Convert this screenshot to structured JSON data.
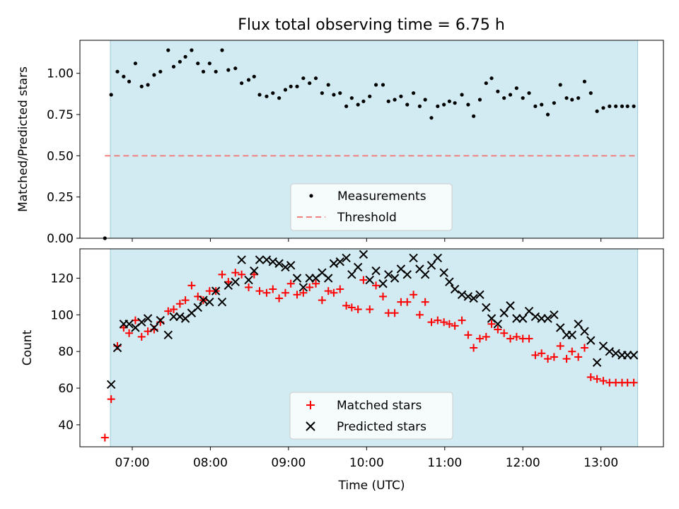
{
  "figure": {
    "title": "Flux total observing time = 6.75 h"
  },
  "chart_data": [
    {
      "type": "scatter",
      "title": "Flux total observing time = 6.75 h",
      "ylabel": "Matched/Predicted stars",
      "xlabel": "",
      "xlim": [
        6.33,
        13.8
      ],
      "ylim": [
        0.0,
        1.2
      ],
      "yticks": [
        0.0,
        0.25,
        0.5,
        0.75,
        1.0
      ],
      "ytick_labels": [
        "0.00",
        "0.25",
        "0.50",
        "0.75",
        "1.00"
      ],
      "grid": false,
      "legend_position": "lower center",
      "observing_window": {
        "start": 6.72,
        "end": 13.47,
        "color": "#add8e6"
      },
      "series": [
        {
          "name": "Measurements",
          "color": "#000000",
          "marker": "dot",
          "x": [
            6.65,
            6.73,
            6.81,
            6.89,
            6.96,
            7.04,
            7.12,
            7.2,
            7.28,
            7.36,
            7.46,
            7.53,
            7.61,
            7.68,
            7.76,
            7.84,
            7.91,
            7.99,
            8.07,
            8.15,
            8.23,
            8.32,
            8.4,
            8.49,
            8.56,
            8.63,
            8.72,
            8.8,
            8.88,
            8.96,
            9.03,
            9.11,
            9.19,
            9.27,
            9.35,
            9.43,
            9.51,
            9.58,
            9.66,
            9.74,
            9.81,
            9.89,
            9.96,
            10.04,
            10.12,
            10.21,
            10.28,
            10.36,
            10.44,
            10.52,
            10.6,
            10.68,
            10.75,
            10.83,
            10.91,
            10.99,
            11.06,
            11.13,
            11.22,
            11.3,
            11.37,
            11.45,
            11.53,
            11.6,
            11.68,
            11.76,
            11.84,
            11.92,
            12.0,
            12.08,
            12.16,
            12.24,
            12.32,
            12.4,
            12.48,
            12.56,
            12.63,
            12.71,
            12.79,
            12.87,
            12.95,
            13.03,
            13.11,
            13.19,
            13.27,
            13.34,
            13.42
          ],
          "y": [
            0.0,
            0.87,
            1.01,
            0.98,
            0.95,
            1.06,
            0.92,
            0.93,
            0.99,
            1.01,
            1.14,
            1.04,
            1.07,
            1.1,
            1.14,
            1.06,
            1.01,
            1.06,
            1.01,
            1.14,
            1.02,
            1.03,
            0.94,
            0.96,
            0.98,
            0.87,
            0.86,
            0.88,
            0.85,
            0.9,
            0.92,
            0.92,
            0.97,
            0.94,
            0.97,
            0.88,
            0.93,
            0.87,
            0.88,
            0.8,
            0.85,
            0.81,
            0.83,
            0.86,
            0.93,
            0.93,
            0.83,
            0.84,
            0.86,
            0.81,
            0.88,
            0.8,
            0.84,
            0.73,
            0.8,
            0.81,
            0.83,
            0.82,
            0.87,
            0.81,
            0.74,
            0.84,
            0.94,
            0.97,
            0.89,
            0.85,
            0.87,
            0.91,
            0.85,
            0.88,
            0.8,
            0.81,
            0.75,
            0.82,
            0.93,
            0.85,
            0.84,
            0.85,
            0.95,
            0.88,
            0.77,
            0.79,
            0.8,
            0.8,
            0.8,
            0.8,
            0.8
          ]
        },
        {
          "name": "Threshold",
          "color": "#f08080",
          "line_style": "dashed",
          "x": [
            6.65,
            13.47
          ],
          "y": [
            0.5,
            0.5
          ]
        }
      ]
    },
    {
      "type": "scatter",
      "title": "",
      "xlabel": "Time (UTC)",
      "ylabel": "Count",
      "xlim": [
        6.33,
        13.8
      ],
      "ylim": [
        28,
        136
      ],
      "xticks": [
        7,
        8,
        9,
        10,
        11,
        12,
        13
      ],
      "xtick_labels": [
        "07:00",
        "08:00",
        "09:00",
        "10:00",
        "11:00",
        "12:00",
        "13:00"
      ],
      "yticks": [
        40,
        60,
        80,
        100,
        120
      ],
      "ytick_labels": [
        "40",
        "60",
        "80",
        "100",
        "120"
      ],
      "grid": false,
      "legend_position": "lower center",
      "observing_window": {
        "start": 6.72,
        "end": 13.47,
        "color": "#add8e6"
      },
      "series": [
        {
          "name": "Matched stars",
          "color": "#ff0000",
          "marker": "plus",
          "x": [
            6.65,
            6.73,
            6.81,
            6.89,
            6.96,
            7.04,
            7.12,
            7.2,
            7.28,
            7.36,
            7.46,
            7.53,
            7.61,
            7.68,
            7.76,
            7.84,
            7.91,
            7.99,
            8.07,
            8.15,
            8.23,
            8.32,
            8.4,
            8.49,
            8.56,
            8.63,
            8.72,
            8.8,
            8.88,
            8.96,
            9.03,
            9.11,
            9.19,
            9.27,
            9.35,
            9.43,
            9.51,
            9.58,
            9.66,
            9.74,
            9.81,
            9.89,
            9.96,
            10.04,
            10.12,
            10.21,
            10.28,
            10.36,
            10.44,
            10.52,
            10.6,
            10.68,
            10.75,
            10.83,
            10.91,
            10.99,
            11.06,
            11.13,
            11.22,
            11.3,
            11.37,
            11.45,
            11.53,
            11.6,
            11.68,
            11.76,
            11.84,
            11.92,
            12.0,
            12.08,
            12.16,
            12.24,
            12.32,
            12.4,
            12.48,
            12.56,
            12.63,
            12.71,
            12.79,
            12.87,
            12.95,
            13.03,
            13.11,
            13.19,
            13.27,
            13.34,
            13.42
          ],
          "y": [
            33,
            54,
            83,
            93,
            90,
            97,
            88,
            91,
            92,
            96,
            102,
            103,
            106,
            108,
            116,
            110,
            108,
            113,
            113,
            122,
            118,
            123,
            122,
            115,
            122,
            113,
            112,
            114,
            109,
            112,
            117,
            111,
            112,
            115,
            117,
            108,
            113,
            112,
            114,
            105,
            104,
            103,
            119,
            103,
            116,
            110,
            101,
            101,
            107,
            107,
            111,
            100,
            107,
            96,
            97,
            96,
            95,
            94,
            97,
            89,
            82,
            87,
            88,
            95,
            92,
            90,
            87,
            88,
            87,
            87,
            78,
            79,
            76,
            77,
            83,
            76,
            80,
            77,
            82,
            66,
            65,
            64,
            63,
            63,
            63,
            63,
            63
          ]
        },
        {
          "name": "Predicted stars",
          "color": "#000000",
          "marker": "cross",
          "x": [
            6.73,
            6.81,
            6.89,
            6.96,
            7.04,
            7.12,
            7.2,
            7.28,
            7.36,
            7.46,
            7.53,
            7.61,
            7.68,
            7.76,
            7.84,
            7.91,
            7.99,
            8.07,
            8.15,
            8.23,
            8.32,
            8.4,
            8.49,
            8.56,
            8.63,
            8.72,
            8.8,
            8.88,
            8.96,
            9.03,
            9.11,
            9.19,
            9.27,
            9.35,
            9.43,
            9.51,
            9.58,
            9.66,
            9.74,
            9.81,
            9.89,
            9.96,
            10.04,
            10.12,
            10.21,
            10.28,
            10.36,
            10.44,
            10.52,
            10.6,
            10.68,
            10.75,
            10.83,
            10.91,
            10.99,
            11.06,
            11.13,
            11.22,
            11.3,
            11.37,
            11.45,
            11.53,
            11.6,
            11.68,
            11.76,
            11.84,
            11.92,
            12.0,
            12.08,
            12.16,
            12.24,
            12.32,
            12.4,
            12.48,
            12.56,
            12.63,
            12.71,
            12.79,
            12.87,
            12.95,
            13.03,
            13.11,
            13.19,
            13.27,
            13.34,
            13.42
          ],
          "y": [
            62,
            82,
            95,
            95,
            93,
            96,
            98,
            93,
            97,
            89,
            99,
            99,
            98,
            101,
            104,
            108,
            107,
            113,
            107,
            116,
            118,
            130,
            119,
            124,
            130,
            130,
            129,
            128,
            126,
            127,
            120,
            115,
            120,
            120,
            123,
            120,
            128,
            129,
            131,
            122,
            126,
            133,
            119,
            124,
            117,
            122,
            120,
            125,
            122,
            131,
            125,
            122,
            127,
            131,
            123,
            118,
            114,
            111,
            110,
            109,
            111,
            104,
            98,
            95,
            101,
            105,
            98,
            98,
            102,
            99,
            98,
            98,
            100,
            93,
            89,
            89,
            95,
            91,
            86,
            74,
            83,
            80,
            79,
            78,
            78,
            78
          ]
        }
      ]
    }
  ]
}
